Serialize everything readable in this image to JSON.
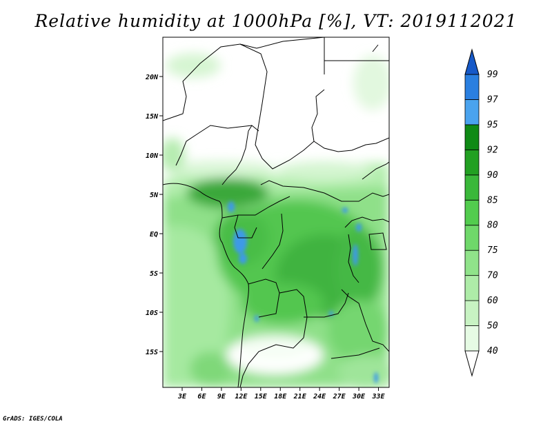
{
  "title": "Relative humidity at 1000hPa [%], VT: 2019112021",
  "footer": "GrADS: IGES/COLA",
  "map": {
    "lat_ticks": [
      "20N",
      "15N",
      "10N",
      "5N",
      "EQ",
      "5S",
      "10S",
      "15S"
    ],
    "lon_ticks": [
      "3E",
      "6E",
      "9E",
      "12E",
      "15E",
      "18E",
      "21E",
      "24E",
      "27E",
      "30E",
      "33E"
    ]
  },
  "colorbar": {
    "levels": [
      "40",
      "50",
      "60",
      "70",
      "75",
      "80",
      "85",
      "90",
      "92",
      "95",
      "97",
      "99"
    ],
    "colors": [
      "#ffffff",
      "#e6fbe4",
      "#c8f3c3",
      "#aeeca8",
      "#90e38a",
      "#6fd86a",
      "#52cc4e",
      "#3ab83a",
      "#22a022",
      "#0f8a15",
      "#4aa3ee",
      "#2a7fe0",
      "#1659c8"
    ]
  },
  "chart_data": {
    "type": "heatmap",
    "title": "Relative humidity at 1000hPa [%], VT: 2019112021",
    "variable": "Relative humidity",
    "units": "%",
    "level": "1000hPa",
    "valid_time": "2019112021",
    "lon_range": [
      0,
      34
    ],
    "lat_range": [
      -19.5,
      24.5
    ],
    "contour_levels": [
      40,
      50,
      60,
      70,
      75,
      80,
      85,
      90,
      92,
      95,
      97,
      99
    ]
  }
}
